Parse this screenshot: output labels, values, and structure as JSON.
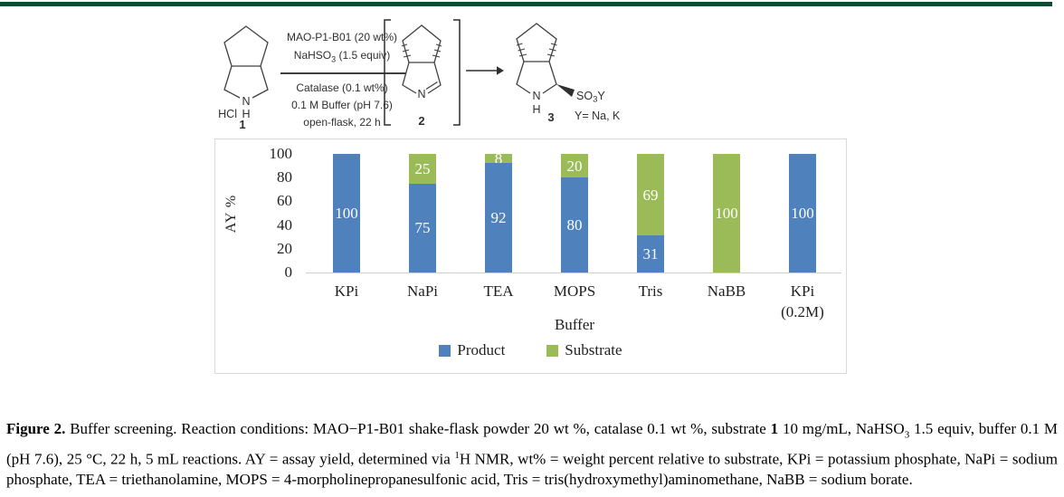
{
  "top_bar": {
    "color": "#0c4a33"
  },
  "scheme": {
    "compound1": {
      "hcl": "HCl",
      "n": "N",
      "h": "H",
      "label": "1"
    },
    "compound2": {
      "n": "N",
      "label": "2"
    },
    "compound3": {
      "n": "N",
      "h": "H",
      "label": "3",
      "so3y_pre": "SO",
      "so3y_sub": "3",
      "so3y_post": "Y",
      "y_note": "Y= Na, K"
    },
    "conditions": {
      "line1": "MAO-P1-B01 (20 wt%)",
      "line2": [
        {
          "t": "NaHSO"
        },
        {
          "t": "3",
          "sub": true
        },
        {
          "t": " (1.5 equiv)"
        }
      ],
      "line3": "Catalase (0.1 wt%)",
      "line4": "0.1 M Buffer (pH 7.6)",
      "line5": "open-flask, 22 h"
    }
  },
  "chart_data": {
    "type": "bar",
    "stacked": true,
    "categories": [
      "KPi",
      "NaPi",
      "TEA",
      "MOPS",
      "Tris",
      "NaBB",
      "KPi\n(0.2M)"
    ],
    "series": [
      {
        "name": "Product",
        "color": "#4f81bd",
        "values": [
          100,
          75,
          92,
          80,
          31,
          0,
          100
        ]
      },
      {
        "name": "Substrate",
        "color": "#9bbb59",
        "values": [
          0,
          25,
          8,
          20,
          69,
          100,
          0
        ]
      }
    ],
    "xlabel": "Buffer",
    "ylabel": "AY %",
    "ylim": [
      0,
      100
    ],
    "yticks": [
      0,
      20,
      40,
      60,
      80,
      100
    ],
    "grid": false,
    "legend_position": "bottom",
    "data_labels": true,
    "data_label_color": "#ffffff"
  },
  "caption": {
    "segments": [
      {
        "t": "Figure 2.",
        "b": true
      },
      {
        "t": " Buffer screening. Reaction conditions: MAO−P1-B01 shake-flask powder 20 wt %, catalase 0.1 wt %, substrate "
      },
      {
        "t": "1",
        "b": true
      },
      {
        "t": " 10 mg/mL, NaHSO"
      },
      {
        "t": "3",
        "sub": true
      },
      {
        "t": " 1.5 equiv, buffer 0.1 M (pH 7.6), 25 °C, 22 h, 5 mL reactions. AY = assay yield, determined via "
      },
      {
        "t": "1",
        "sup": true
      },
      {
        "t": "H NMR, wt% = weight percent relative to substrate, KPi = potassium phosphate, NaPi = sodium phosphate, TEA = triethanolamine, MOPS = 4-morpholinepropanesulfonic acid, Tris = tris(hydroxymethyl)aminomethane, NaBB = sodium borate."
      }
    ]
  }
}
